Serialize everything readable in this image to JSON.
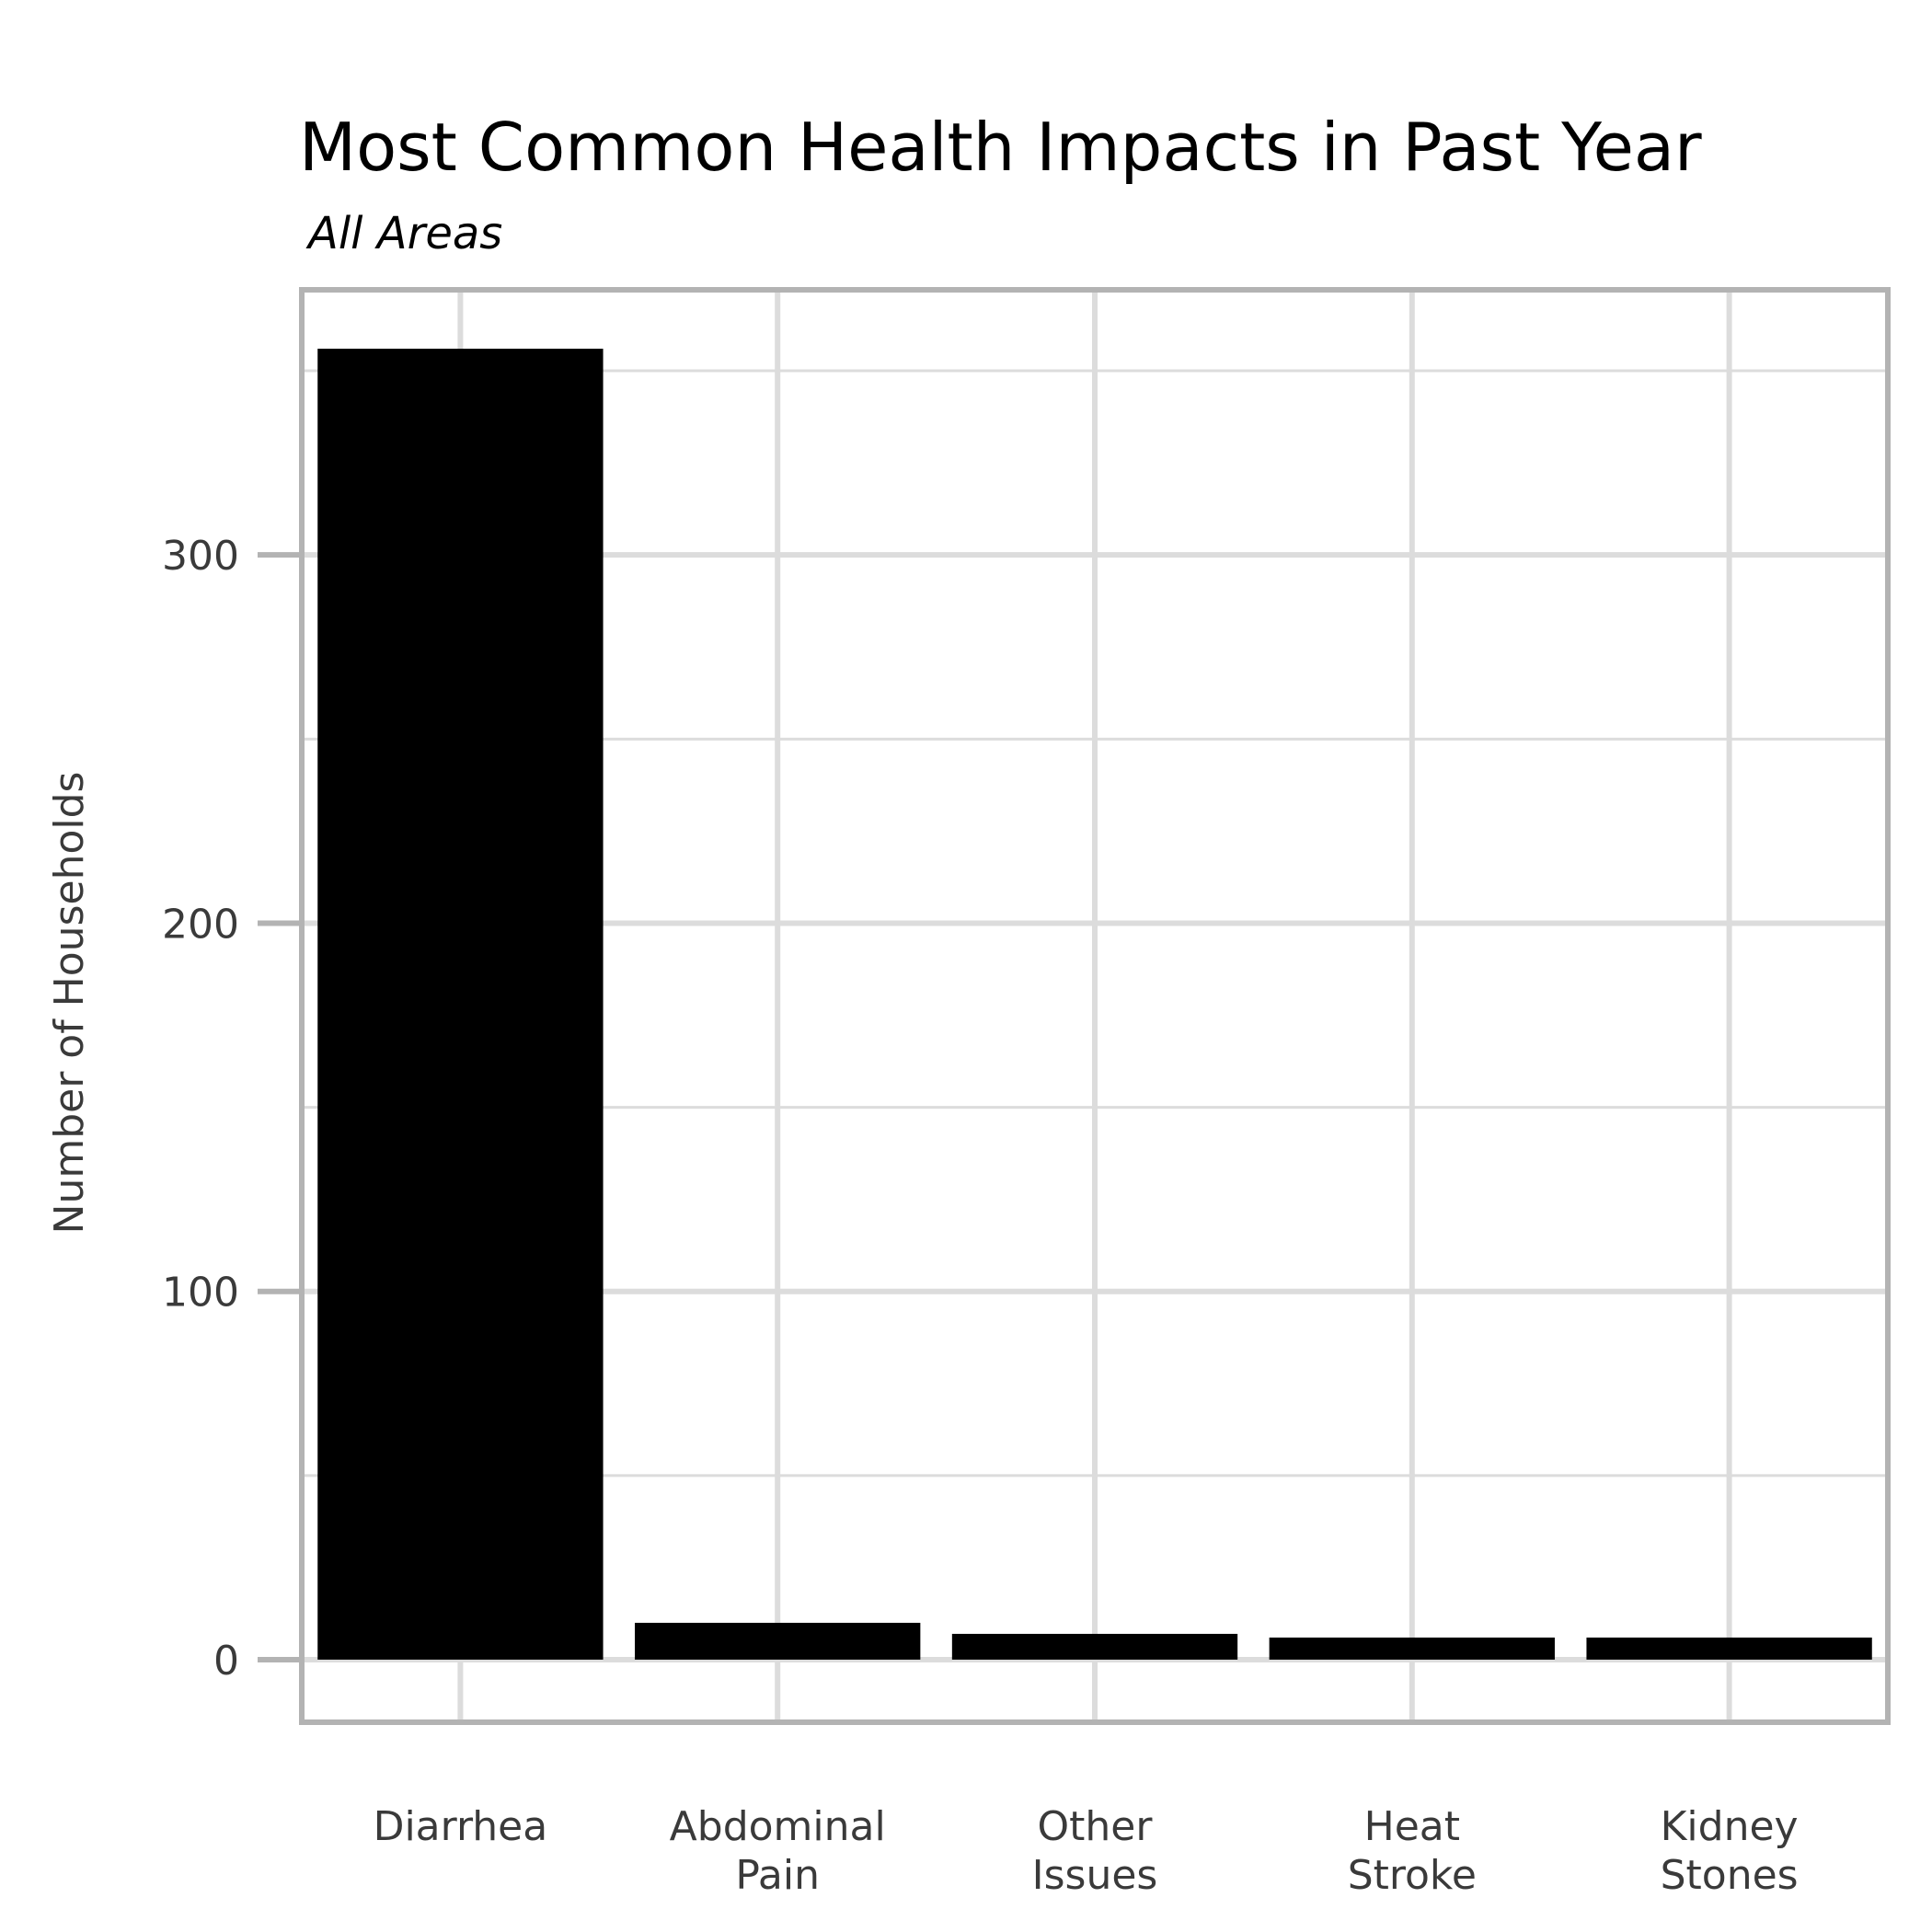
{
  "chart_data": {
    "type": "bar",
    "title": "Most Common Health Impacts in Past Year",
    "subtitle": "All Areas",
    "xlabel": "",
    "ylabel": "Number of Households",
    "categories": [
      [
        "Diarrhea"
      ],
      [
        "Abdominal",
        "Pain"
      ],
      [
        "Other",
        "Issues"
      ],
      [
        "Heat",
        "Stroke"
      ],
      [
        "Kidney",
        "Stones"
      ]
    ],
    "values": [
      356,
      10,
      7,
      6,
      6
    ],
    "yticks": [
      0,
      100,
      200,
      300
    ],
    "ylim": [
      -17,
      372
    ],
    "grid": true,
    "bar_color": "#000000",
    "grid_color": "#dcdcdc",
    "frame_color": "#b3b3b3"
  }
}
